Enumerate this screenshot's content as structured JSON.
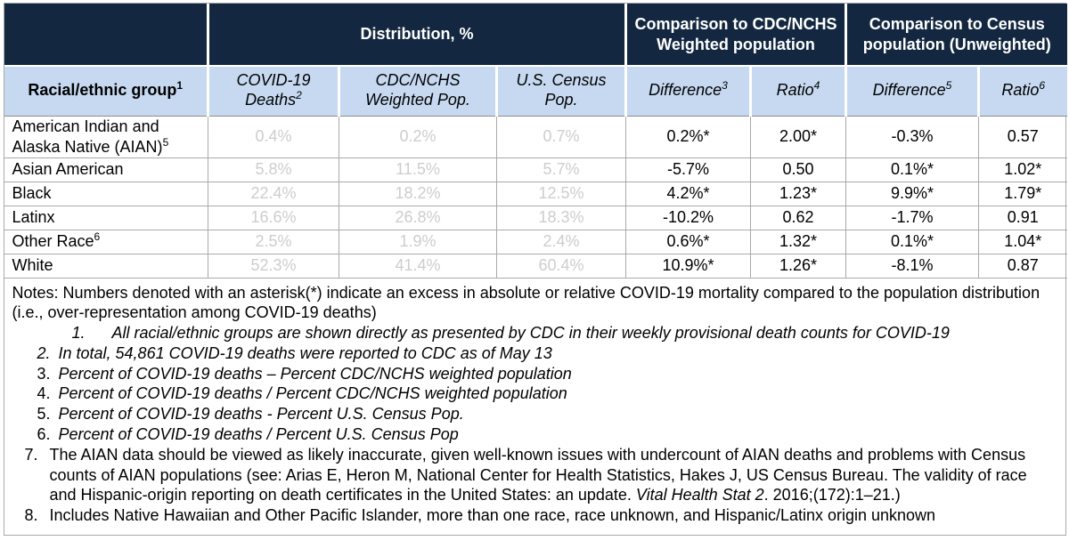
{
  "colors": {
    "header_bg": "#132840",
    "header_text": "#ffffff",
    "subheader_bg": "#c6d9f1",
    "body_bg": "#ffffff",
    "text": "#000000",
    "muted_value": "#cdcdcd",
    "grid_border": "#a9a9a9"
  },
  "table": {
    "group_headers": [
      {
        "label": ""
      },
      {
        "label": "Distribution, %"
      },
      {
        "label": "Comparison to CDC/NCHS Weighted population"
      },
      {
        "label": "Comparison to Census population (Unweighted)"
      }
    ],
    "column_headers": [
      {
        "label": "Racial/ethnic group",
        "sup": "1"
      },
      {
        "label": "COVID-19 Deaths",
        "sup": "2"
      },
      {
        "label": "CDC/NCHS Weighted Pop."
      },
      {
        "label": "U.S. Census Pop."
      },
      {
        "label": "Difference",
        "sup": "3"
      },
      {
        "label": "Ratio",
        "sup": "4"
      },
      {
        "label": "Difference",
        "sup": "5"
      },
      {
        "label": "Ratio",
        "sup": "6"
      }
    ],
    "rows": [
      {
        "group": "American Indian and Alaska Native (AIAN)",
        "sup": "5",
        "values": [
          "0.4%",
          "0.2%",
          "0.7%",
          "0.2%*",
          "2.00*",
          "-0.3%",
          "0.57"
        ]
      },
      {
        "group": "Asian American",
        "values": [
          "5.8%",
          "11.5%",
          "5.7%",
          "-5.7%",
          "0.50",
          "0.1%*",
          "1.02*"
        ]
      },
      {
        "group": "Black",
        "values": [
          "22.4%",
          "18.2%",
          "12.5%",
          "4.2%*",
          "1.23*",
          "9.9%*",
          "1.79*"
        ]
      },
      {
        "group": "Latinx",
        "values": [
          "16.6%",
          "26.8%",
          "18.3%",
          "-10.2%",
          "0.62",
          "-1.7%",
          "0.91"
        ]
      },
      {
        "group": "Other Race",
        "sup": "6",
        "values": [
          "2.5%",
          "1.9%",
          "2.4%",
          "0.6%*",
          "1.32*",
          "0.1%*",
          "1.04*"
        ]
      },
      {
        "group": "White",
        "values": [
          "52.3%",
          "41.4%",
          "60.4%",
          "10.9%*",
          "1.26*",
          "-8.1%",
          "0.87"
        ]
      }
    ]
  },
  "notes": {
    "intro": "Notes: Numbers denoted with an asterisk(*) indicate an excess in absolute or relative COVID-19 mortality compared to the population distribution (i.e., over-representation among COVID-19 deaths)",
    "items": [
      {
        "num": "1.",
        "indent": "a",
        "num_italic": true,
        "parts": [
          {
            "text": "All racial/ethnic groups are shown directly as presented by CDC in their weekly provisional death counts for COVID-19",
            "italic": true
          }
        ]
      },
      {
        "num": "2.",
        "indent": "b",
        "num_italic": true,
        "parts": [
          {
            "text": "In total, 54,861 COVID-19 deaths were reported to CDC as of May 13",
            "italic": true
          }
        ]
      },
      {
        "num": "3.",
        "indent": "b",
        "num_italic": false,
        "parts": [
          {
            "text": "Percent of COVID-19 deaths – Percent CDC/NCHS weighted population",
            "italic": true
          }
        ]
      },
      {
        "num": "4.",
        "indent": "b",
        "num_italic": false,
        "parts": [
          {
            "text": "Percent of COVID-19 deaths / Percent CDC/NCHS weighted population",
            "italic": true
          }
        ]
      },
      {
        "num": "5.",
        "indent": "b",
        "num_italic": false,
        "parts": [
          {
            "text": "Percent of COVID-19 deaths - Percent U.S. Census Pop.",
            "italic": true
          }
        ]
      },
      {
        "num": "6.",
        "indent": "b",
        "num_italic": false,
        "parts": [
          {
            "text": "Percent of COVID-19 deaths / Percent U.S. Census Pop",
            "italic": true
          }
        ]
      },
      {
        "num": "7.",
        "indent": "c",
        "num_italic": false,
        "parts": [
          {
            "text": "The AIAN data should be viewed as likely inaccurate, given well-known issues with undercount of AIAN deaths and problems with Census counts of AIAN populations (see: Arias E, Heron M, National Center for Health Statistics, Hakes J, US Census Bureau. The validity of race and Hispanic-origin reporting on death certificates in the United States: an update. ",
            "italic": false
          },
          {
            "text": "Vital Health Stat 2",
            "italic": true
          },
          {
            "text": ". 2016;(172):1–21.)",
            "italic": false
          }
        ]
      },
      {
        "num": "8.",
        "indent": "c",
        "num_italic": false,
        "parts": [
          {
            "text": "Includes Native Hawaiian and Other Pacific Islander, more than one race, race unknown, and Hispanic/Latinx origin unknown",
            "italic": false
          }
        ]
      }
    ]
  }
}
